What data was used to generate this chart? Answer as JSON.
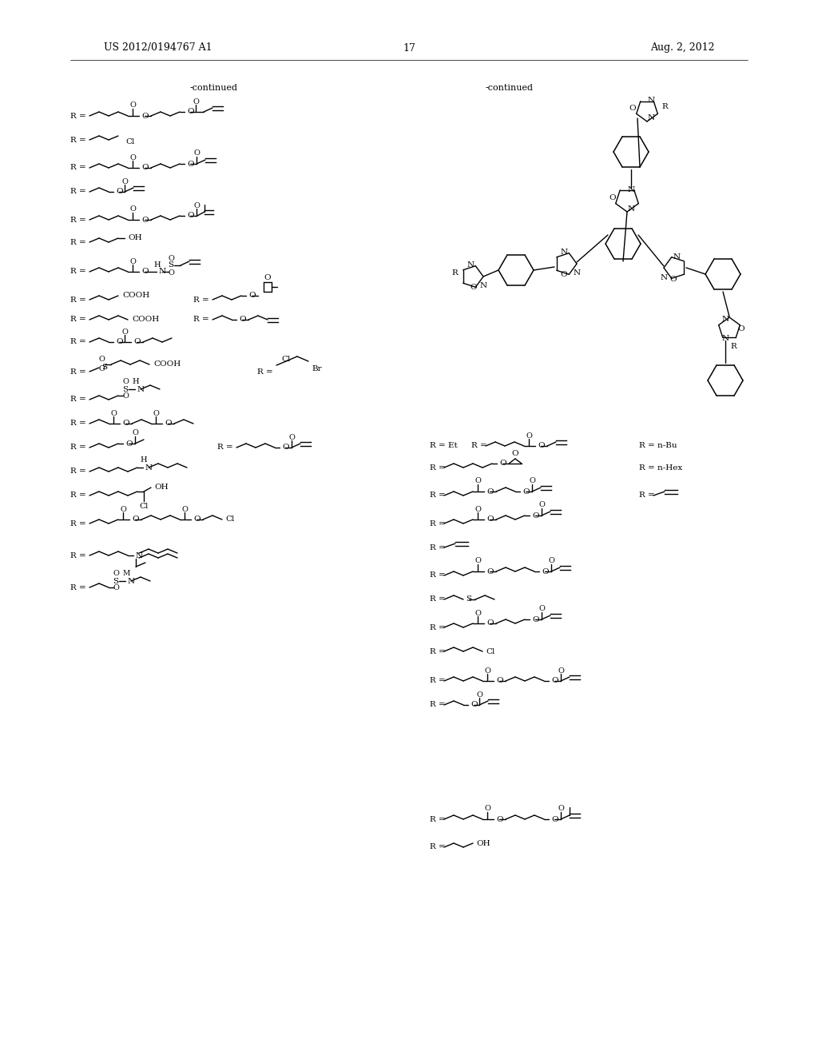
{
  "patent_number": "US 2012/0194767 A1",
  "date": "Aug. 2, 2012",
  "page_number": "17",
  "bg": "#ffffff"
}
